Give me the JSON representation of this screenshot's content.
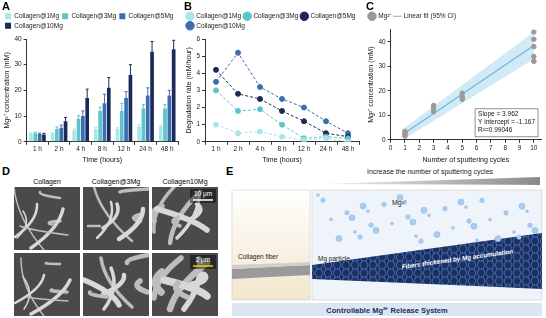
{
  "chart_data": [
    {
      "type": "bar",
      "title": "A",
      "x_label": "Time (hours)",
      "y_label": "Mg²⁺ concentration (mM)",
      "categories": [
        "1 h",
        "2 h",
        "4 h",
        "8 h",
        "12 h",
        "24 h",
        "48 h"
      ],
      "series": [
        {
          "name": "Collagen@1Mg",
          "color": "#a8e6e8",
          "values": [
            3.2,
            3.3,
            4.5,
            5,
            5,
            6,
            6
          ],
          "errors": [
            0.3,
            0.3,
            0.5,
            0.6,
            0.5,
            0.6,
            0.5
          ]
        },
        {
          "name": "Collagen@3Mg",
          "color": "#5ec4c9",
          "values": [
            3.3,
            5,
            9,
            12,
            12,
            13,
            13
          ],
          "errors": [
            0.4,
            0.8,
            1.2,
            1.5,
            3,
            1.5,
            1.5
          ]
        },
        {
          "name": "Collagen@5Mg",
          "color": "#3b6db3",
          "values": [
            3,
            5.5,
            10,
            15,
            17,
            18,
            18
          ],
          "errors": [
            0.4,
            1,
            2,
            3.5,
            2.5,
            3,
            2
          ]
        },
        {
          "name": "Collagen@10Mg",
          "color": "#1b2a5a",
          "values": [
            2.8,
            8,
            17,
            21,
            26,
            35,
            36
          ],
          "errors": [
            0.5,
            1.5,
            3.5,
            4,
            4,
            4,
            3.5
          ]
        }
      ],
      "ylim": [
        0,
        40
      ],
      "yticks": [
        0,
        10,
        20,
        30,
        40
      ],
      "grid": false,
      "legend": "top"
    },
    {
      "type": "line",
      "title": "B",
      "x_label": "Time (hours)",
      "y_label": "Degradation rate (mM/hour)",
      "categories": [
        "1 h",
        "2 h",
        "4 h",
        "8 h",
        "12 h",
        "24 h",
        "48 h"
      ],
      "series": [
        {
          "name": "Collagen@1Mg",
          "color": "#a8e6e8",
          "values": [
            1,
            0.5,
            0.6,
            0.3,
            0.1,
            0.2,
            0
          ]
        },
        {
          "name": "Collagen@3Mg",
          "color": "#5ec4c9",
          "values": [
            3,
            1.8,
            1.9,
            1,
            0.2,
            0.3,
            0.2
          ]
        },
        {
          "name": "Collagen@5Mg",
          "color": "#1b2a5a",
          "values": [
            4.2,
            2.8,
            2.5,
            1.8,
            1.2,
            0.5,
            0.3
          ]
        },
        {
          "name": "Collagen@10Mg",
          "color": "#3b6db3",
          "values": [
            3.5,
            5.2,
            3.2,
            2.5,
            2,
            1.2,
            0.5
          ]
        }
      ],
      "ylim": [
        0,
        6
      ],
      "yticks": [
        0,
        1,
        2,
        3,
        4,
        5,
        6
      ],
      "grid": false,
      "legend": "top",
      "marker": "circle",
      "line_style": "dashed"
    },
    {
      "type": "scatter",
      "title": "C",
      "x_label": "Number of sputtering cycles",
      "y_label": "Mg²⁺ concentration (mM)",
      "series": [
        {
          "name": "Mg²⁺",
          "type": "scatter",
          "color": "#9a9a9a",
          "marker": "circle",
          "x": [
            1,
            1,
            1,
            1,
            3,
            3,
            3,
            5,
            5,
            5,
            10,
            10,
            10,
            10,
            10
          ],
          "values": [
            1.5,
            2.2,
            2.8,
            3.5,
            11.5,
            13,
            14,
            16.5,
            17.5,
            19,
            32,
            34,
            38,
            41,
            44
          ]
        },
        {
          "name": "Linear fit (95% CI)",
          "type": "line",
          "color": "#6bb7e0",
          "line_style": "solid",
          "x": [
            1,
            10
          ],
          "values": [
            2.8,
            38.5
          ],
          "ci_lower": [
            0.5,
            33
          ],
          "ci_upper": [
            5,
            44
          ]
        }
      ],
      "annotations": [
        "Slope = 3.962",
        "Y intercept = -1.167",
        "R²=0.99046"
      ],
      "xlim": [
        0,
        10.5
      ],
      "xticks": [
        0,
        1,
        2,
        3,
        4,
        5,
        6,
        7,
        8,
        9,
        10
      ],
      "ylim": [
        0,
        45
      ],
      "yticks": [
        0,
        10,
        20,
        30,
        40
      ],
      "grid": false,
      "legend": "top"
    }
  ],
  "panel_D": {
    "label": "D",
    "columns": [
      "Collagen",
      "Collagen@3Mg",
      "Collagen10Mg"
    ],
    "scale_bars": [
      "10 μm",
      "2 μm"
    ]
  },
  "panel_E": {
    "label": "E",
    "header": "Increase the number of sputtering cycles",
    "fiber": "Collagen fiber",
    "particle": "Mg particle",
    "ion": "Mg²⁺",
    "thickened": "Fibers thickened by Mg accumulation",
    "caption": "Controllable Mg²⁺ Release System"
  }
}
